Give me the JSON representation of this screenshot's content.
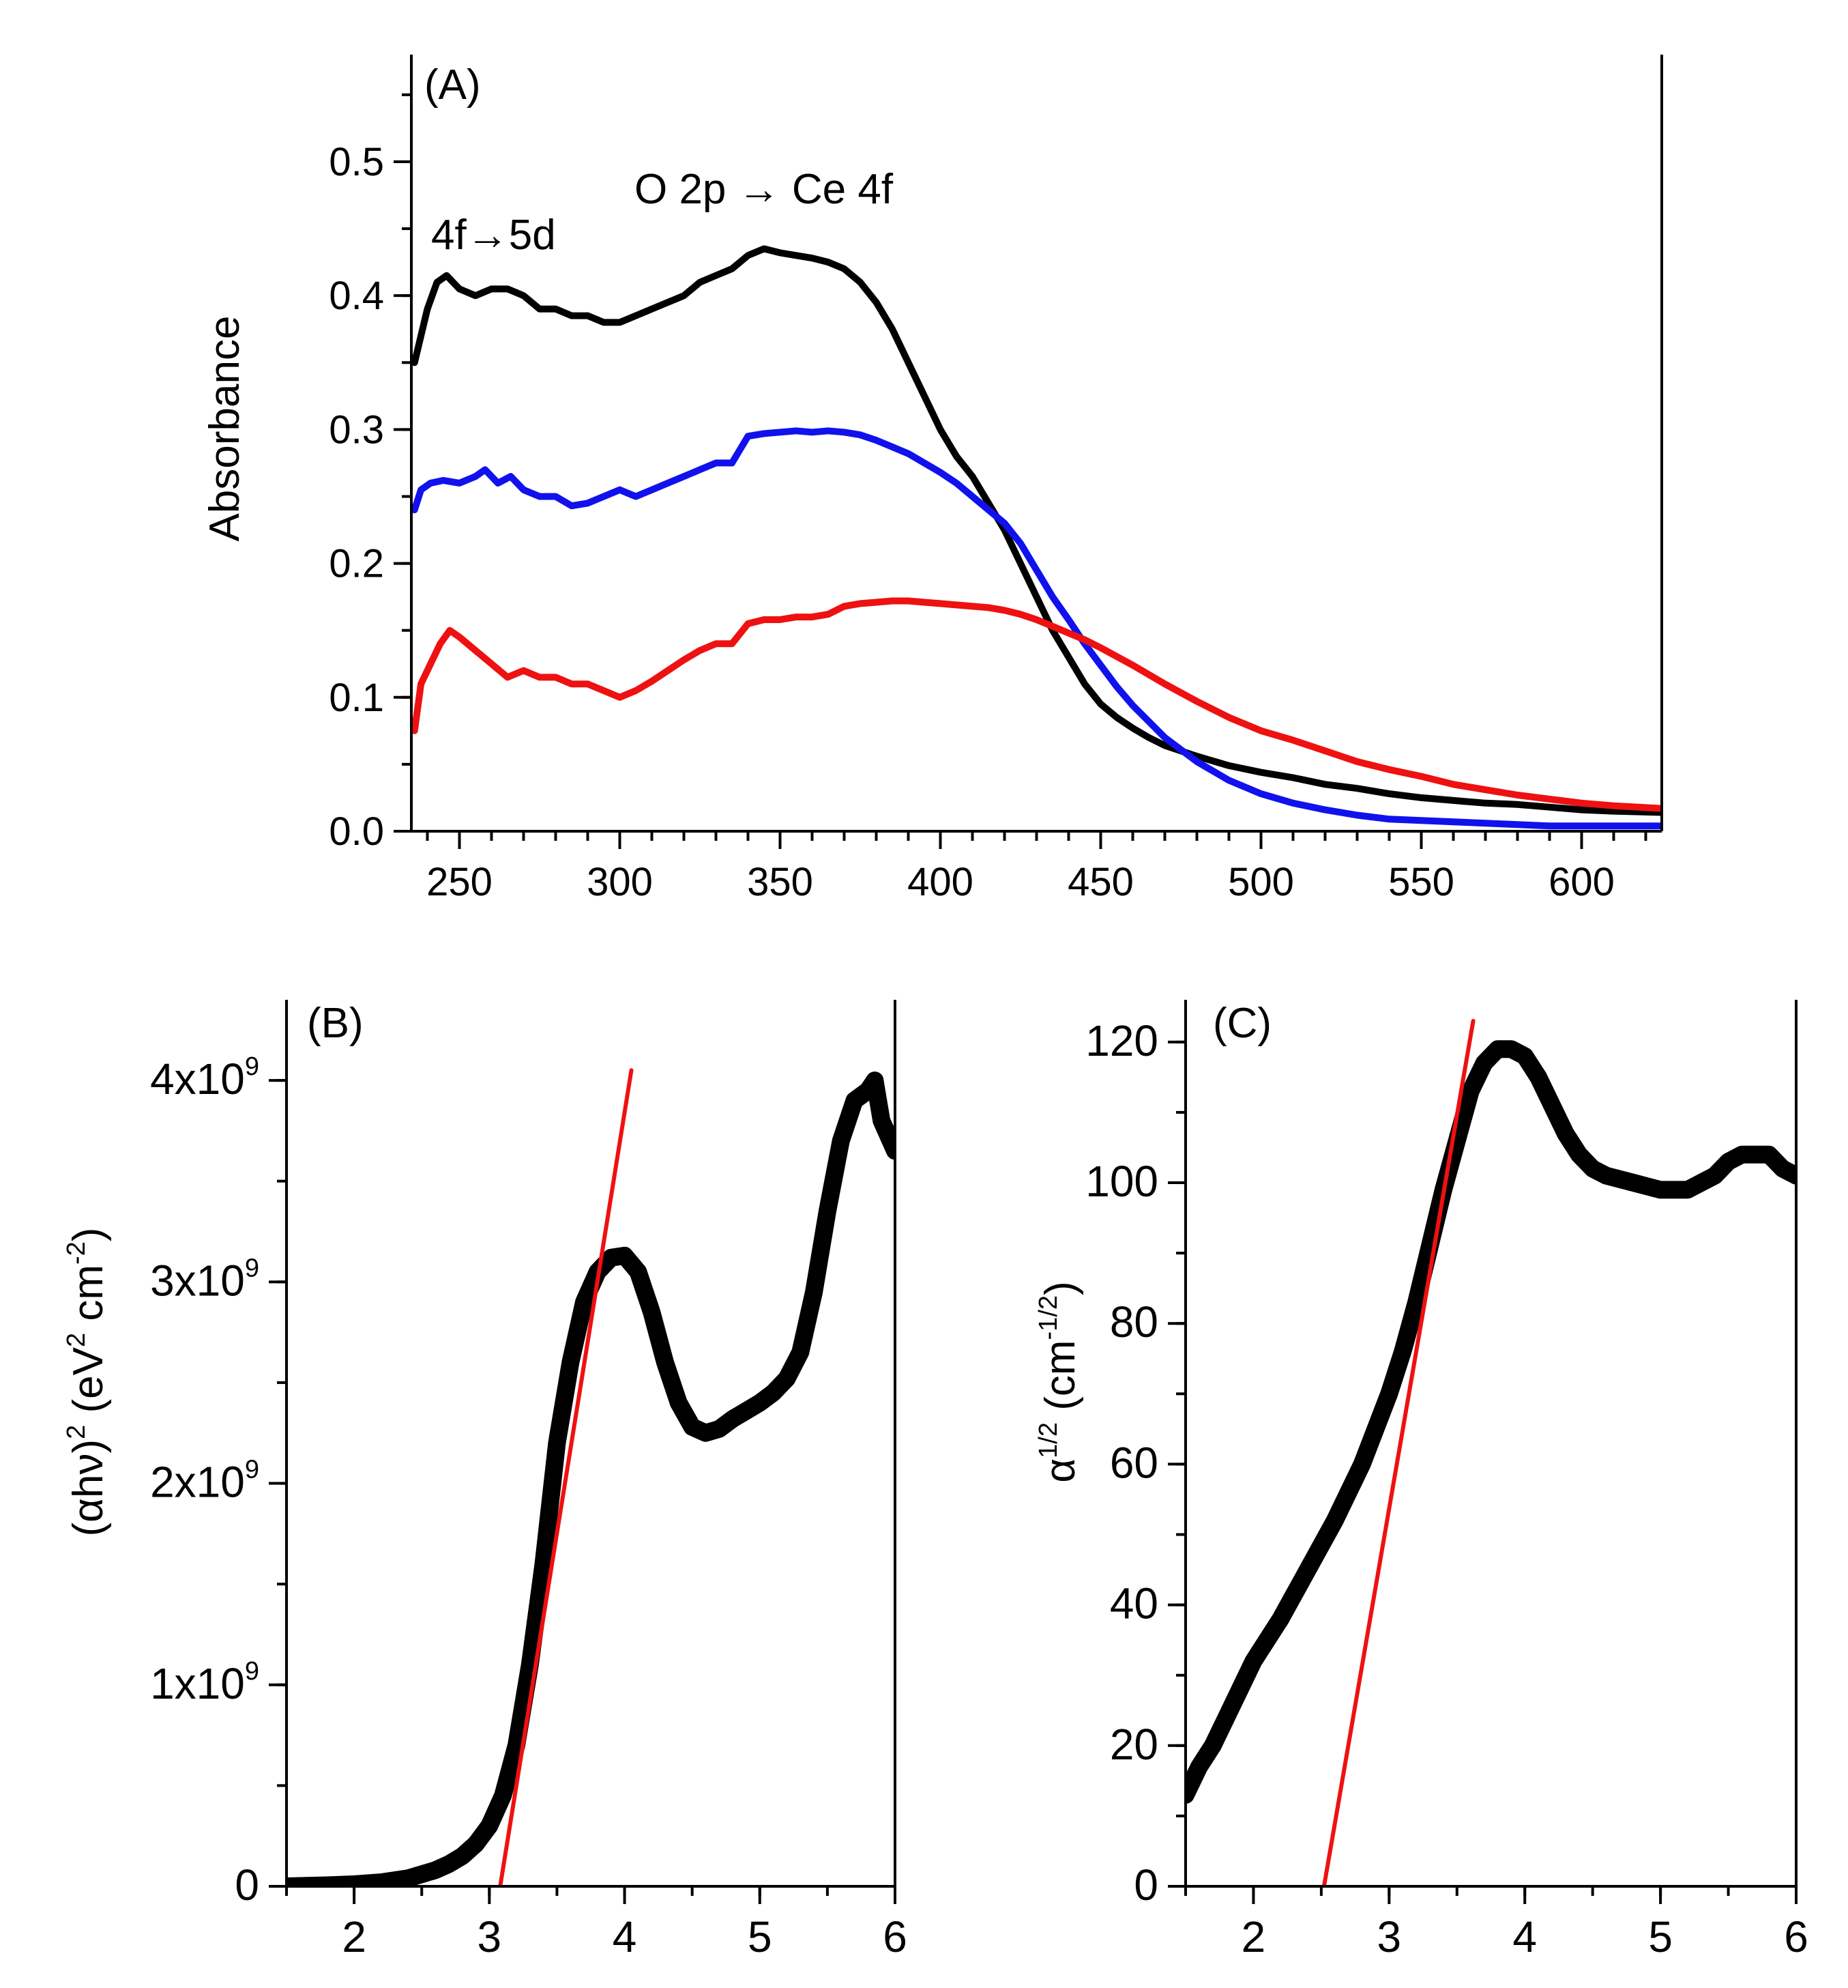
{
  "figure": {
    "colors": {
      "black": "#000000",
      "blue": "#1111ee",
      "red": "#ee1111"
    }
  },
  "chart_data": [
    {
      "panel": "(A)",
      "type": "line",
      "title": "",
      "xlabel": "",
      "ylabel": "Absorbance",
      "xlim": [
        235,
        625
      ],
      "ylim": [
        0,
        0.58
      ],
      "x_ticks": [
        "250",
        "300",
        "350",
        "400",
        "450",
        "500",
        "550",
        "600"
      ],
      "y_ticks": [
        "0.0",
        "0.1",
        "0.2",
        "0.3",
        "0.4",
        "0.5"
      ],
      "annotations": [
        "4f→5d",
        "O 2p → Ce 4f"
      ],
      "series": [
        {
          "name": "black",
          "color": "#000000",
          "x": [
            236,
            238,
            240,
            243,
            246,
            250,
            255,
            260,
            265,
            270,
            275,
            280,
            285,
            290,
            295,
            300,
            305,
            310,
            315,
            320,
            325,
            330,
            335,
            340,
            345,
            350,
            355,
            360,
            365,
            370,
            375,
            380,
            385,
            390,
            395,
            400,
            405,
            410,
            415,
            420,
            425,
            430,
            435,
            440,
            445,
            450,
            455,
            460,
            465,
            470,
            480,
            490,
            500,
            510,
            520,
            530,
            540,
            550,
            560,
            570,
            580,
            590,
            600,
            610,
            625
          ],
          "y": [
            0.35,
            0.37,
            0.39,
            0.41,
            0.415,
            0.405,
            0.4,
            0.405,
            0.405,
            0.4,
            0.39,
            0.39,
            0.385,
            0.385,
            0.38,
            0.38,
            0.385,
            0.39,
            0.395,
            0.4,
            0.41,
            0.415,
            0.42,
            0.43,
            0.435,
            0.432,
            0.43,
            0.428,
            0.425,
            0.42,
            0.41,
            0.395,
            0.375,
            0.35,
            0.325,
            0.3,
            0.28,
            0.265,
            0.245,
            0.225,
            0.2,
            0.175,
            0.15,
            0.13,
            0.11,
            0.095,
            0.085,
            0.077,
            0.07,
            0.064,
            0.056,
            0.049,
            0.044,
            0.04,
            0.035,
            0.032,
            0.028,
            0.025,
            0.023,
            0.021,
            0.02,
            0.018,
            0.016,
            0.015,
            0.014
          ]
        },
        {
          "name": "blue",
          "color": "#1111ee",
          "x": [
            236,
            238,
            241,
            245,
            250,
            255,
            258,
            262,
            266,
            270,
            275,
            280,
            285,
            290,
            295,
            300,
            305,
            310,
            315,
            320,
            325,
            330,
            335,
            340,
            345,
            350,
            355,
            360,
            365,
            370,
            375,
            380,
            385,
            390,
            395,
            400,
            405,
            410,
            415,
            420,
            425,
            430,
            435,
            440,
            445,
            450,
            455,
            460,
            465,
            470,
            480,
            490,
            500,
            510,
            520,
            530,
            540,
            550,
            560,
            570,
            580,
            590,
            600,
            625
          ],
          "y": [
            0.24,
            0.255,
            0.26,
            0.262,
            0.26,
            0.265,
            0.27,
            0.26,
            0.265,
            0.255,
            0.25,
            0.25,
            0.243,
            0.245,
            0.25,
            0.255,
            0.25,
            0.255,
            0.26,
            0.265,
            0.27,
            0.275,
            0.275,
            0.295,
            0.297,
            0.298,
            0.299,
            0.298,
            0.299,
            0.298,
            0.296,
            0.292,
            0.287,
            0.282,
            0.275,
            0.268,
            0.26,
            0.25,
            0.24,
            0.23,
            0.215,
            0.195,
            0.175,
            0.158,
            0.14,
            0.124,
            0.108,
            0.094,
            0.082,
            0.07,
            0.052,
            0.038,
            0.028,
            0.021,
            0.016,
            0.012,
            0.009,
            0.008,
            0.007,
            0.006,
            0.005,
            0.004,
            0.004,
            0.004
          ]
        },
        {
          "name": "red",
          "color": "#ee1111",
          "x": [
            236,
            238,
            241,
            244,
            247,
            250,
            255,
            260,
            265,
            270,
            275,
            280,
            285,
            290,
            295,
            300,
            305,
            310,
            315,
            320,
            325,
            330,
            335,
            340,
            345,
            350,
            355,
            360,
            365,
            370,
            375,
            380,
            385,
            390,
            395,
            400,
            405,
            410,
            415,
            420,
            425,
            430,
            435,
            440,
            445,
            450,
            460,
            470,
            480,
            490,
            500,
            510,
            520,
            530,
            540,
            550,
            560,
            570,
            580,
            590,
            600,
            610,
            625
          ],
          "y": [
            0.075,
            0.11,
            0.125,
            0.14,
            0.15,
            0.145,
            0.135,
            0.125,
            0.115,
            0.12,
            0.115,
            0.115,
            0.11,
            0.11,
            0.105,
            0.1,
            0.105,
            0.112,
            0.12,
            0.128,
            0.135,
            0.14,
            0.14,
            0.155,
            0.158,
            0.158,
            0.16,
            0.16,
            0.162,
            0.168,
            0.17,
            0.171,
            0.172,
            0.172,
            0.171,
            0.17,
            0.169,
            0.168,
            0.167,
            0.165,
            0.162,
            0.158,
            0.153,
            0.148,
            0.143,
            0.137,
            0.124,
            0.11,
            0.097,
            0.085,
            0.075,
            0.068,
            0.06,
            0.052,
            0.046,
            0.041,
            0.035,
            0.031,
            0.027,
            0.024,
            0.021,
            0.019,
            0.017
          ]
        }
      ]
    },
    {
      "panel": "(B)",
      "type": "line",
      "xlabel": "",
      "ylabel_parts": [
        "(αhν)",
        "2",
        " (eV",
        "2",
        " cm",
        "-2",
        ")"
      ],
      "xlim": [
        1.5,
        6.0
      ],
      "ylim": [
        0,
        4400000000.0
      ],
      "x_ticks": [
        "2",
        "3",
        "4",
        "5",
        "6"
      ],
      "y_ticks": [
        {
          "value": 0,
          "base": "0",
          "exp": ""
        },
        {
          "value": 1000000000.0,
          "base": "1x10",
          "exp": "9"
        },
        {
          "value": 2000000000.0,
          "base": "2x10",
          "exp": "9"
        },
        {
          "value": 3000000000.0,
          "base": "3x10",
          "exp": "9"
        },
        {
          "value": 4000000000.0,
          "base": "4x10",
          "exp": "9"
        }
      ],
      "series": [
        {
          "name": "data",
          "color": "#000000",
          "x": [
            1.5,
            1.8,
            2.0,
            2.2,
            2.4,
            2.5,
            2.6,
            2.7,
            2.8,
            2.9,
            3.0,
            3.1,
            3.2,
            3.3,
            3.4,
            3.5,
            3.6,
            3.7,
            3.8,
            3.9,
            4.0,
            4.1,
            4.2,
            4.3,
            4.4,
            4.5,
            4.6,
            4.7,
            4.8,
            4.9,
            5.0,
            5.1,
            5.2,
            5.3,
            5.4,
            5.5,
            5.6,
            5.7,
            5.8,
            5.85,
            5.9,
            6.0
          ],
          "y": [
            0.0,
            5000000.0,
            10000000.0,
            20000000.0,
            40000000.0,
            60000000.0,
            80000000.0,
            110000000.0,
            150000000.0,
            210000000.0,
            300000000.0,
            450000000.0,
            700000000.0,
            1100000000.0,
            1600000000.0,
            2200000000.0,
            2600000000.0,
            2900000000.0,
            3050000000.0,
            3120000000.0,
            3130000000.0,
            3050000000.0,
            2850000000.0,
            2600000000.0,
            2400000000.0,
            2280000000.0,
            2250000000.0,
            2270000000.0,
            2320000000.0,
            2360000000.0,
            2400000000.0,
            2450000000.0,
            2520000000.0,
            2650000000.0,
            2950000000.0,
            3350000000.0,
            3700000000.0,
            3900000000.0,
            3950000000.0,
            4000000000.0,
            3800000000.0,
            3650000000.0
          ]
        },
        {
          "name": "linear fit",
          "color": "#ee1111",
          "x": [
            3.08,
            4.05
          ],
          "y": [
            0.0,
            4050000000.0
          ]
        }
      ]
    },
    {
      "panel": "(C)",
      "type": "line",
      "xlabel": "",
      "ylabel_parts": [
        "α",
        "1/2",
        " (cm",
        "-1/2",
        ")"
      ],
      "xlim": [
        1.5,
        6.0
      ],
      "ylim": [
        0,
        126
      ],
      "x_ticks": [
        "2",
        "3",
        "4",
        "5",
        "6"
      ],
      "y_ticks": [
        "0",
        "20",
        "40",
        "60",
        "80",
        "100",
        "120"
      ],
      "series": [
        {
          "name": "data",
          "color": "#000000",
          "x": [
            1.5,
            1.6,
            1.7,
            1.8,
            1.9,
            2.0,
            2.2,
            2.4,
            2.6,
            2.8,
            3.0,
            3.1,
            3.2,
            3.3,
            3.4,
            3.5,
            3.6,
            3.7,
            3.8,
            3.9,
            4.0,
            4.1,
            4.2,
            4.3,
            4.4,
            4.5,
            4.6,
            4.8,
            5.0,
            5.2,
            5.3,
            5.4,
            5.5,
            5.6,
            5.7,
            5.8,
            5.9,
            6.0
          ],
          "y": [
            13,
            17,
            20,
            24,
            28,
            32,
            38,
            45,
            52,
            60,
            70,
            76,
            83,
            91,
            99,
            106,
            113,
            117,
            119,
            119,
            118,
            115,
            111,
            107,
            104,
            102,
            101,
            100,
            99,
            99,
            100,
            101,
            103,
            104,
            104,
            104,
            102,
            101
          ]
        },
        {
          "name": "linear fit",
          "color": "#ee1111",
          "x": [
            2.52,
            3.62
          ],
          "y": [
            0.0,
            123.0
          ]
        }
      ]
    }
  ]
}
